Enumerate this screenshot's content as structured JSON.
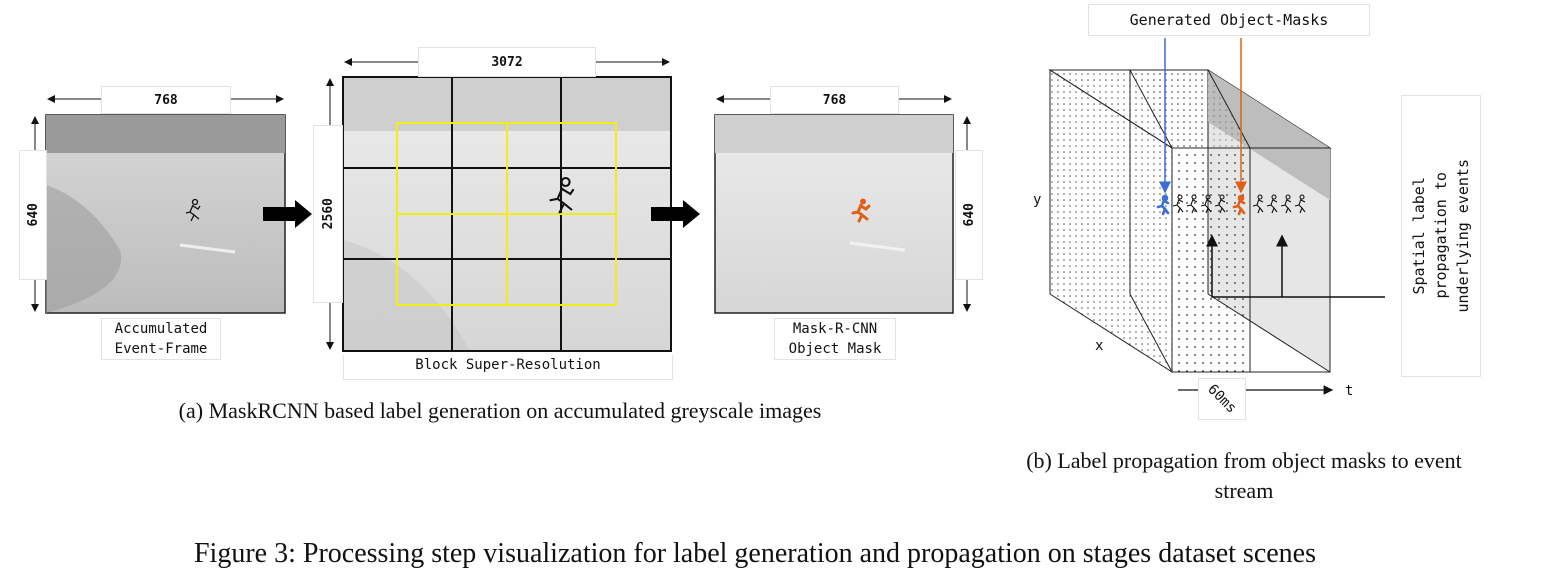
{
  "panel_a": {
    "frame1": {
      "width_label": "768",
      "height_label": "640",
      "caption": "Accumulated\nEvent-Frame"
    },
    "frame2": {
      "width_label": "3072",
      "height_label": "2560",
      "caption": "Block Super-Resolution"
    },
    "frame3": {
      "width_label": "768",
      "height_label": "640",
      "caption": "Mask-R-CNN\nObject Mask"
    },
    "subcaption": "(a) MaskRCNN based label generation on accumulated greyscale images"
  },
  "panel_b": {
    "top_label": "Generated Object-Masks",
    "side_label": "Spatial label\npropagation to\nunderlying events",
    "axis_y": "y",
    "axis_x": "x",
    "axis_t": "t",
    "window_label": "60ms",
    "subcaption": "(b) Label propagation from object masks to event stream"
  },
  "figure_caption": "Figure 3: Processing step visualization for label generation and propagation on stages dataset scenes",
  "colors": {
    "grid_highlight": "#f2ec1a",
    "mask_orange": "#e0601a",
    "mask_blue": "#3a6fd8"
  }
}
